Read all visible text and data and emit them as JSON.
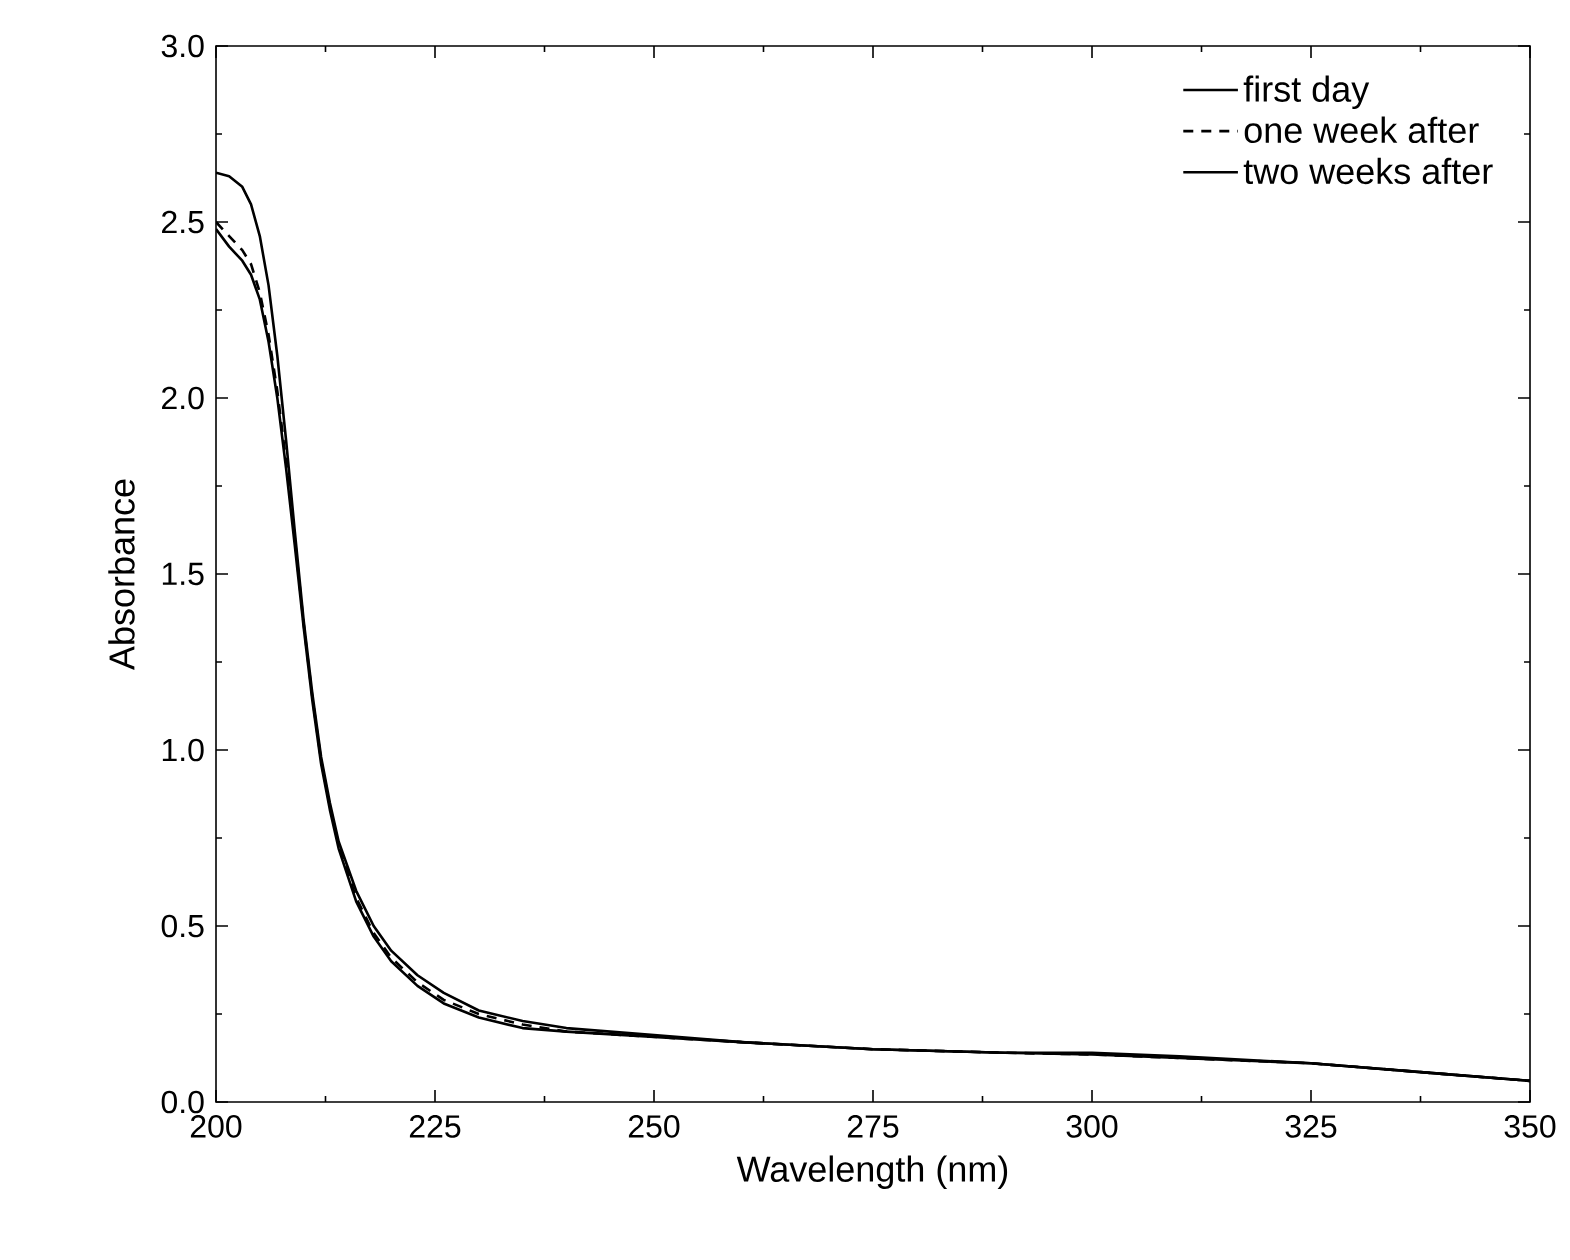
{
  "chart_data": {
    "type": "line",
    "xlabel": "Wavelength (nm)",
    "ylabel": "Absorbance",
    "xlim": [
      200,
      350
    ],
    "ylim": [
      0,
      3.0
    ],
    "xticks": [
      200,
      225,
      250,
      275,
      300,
      325,
      350
    ],
    "yticks": [
      {
        "value": 0,
        "label": "0.0"
      },
      {
        "value": 0.5,
        "label": "0.5"
      },
      {
        "value": 1,
        "label": "1.0"
      },
      {
        "value": 1.5,
        "label": "1.5"
      },
      {
        "value": 2,
        "label": "2.0"
      },
      {
        "value": 2.5,
        "label": "2.5"
      },
      {
        "value": 3,
        "label": "3.0"
      }
    ],
    "legend": "top right",
    "grid": false,
    "series": [
      {
        "name": "first day",
        "color": "#000000",
        "line_style": "solid",
        "x": [
          200,
          201.5,
          203,
          204,
          205,
          206,
          207,
          208,
          209,
          210,
          211,
          212,
          213,
          214,
          216,
          218,
          220,
          223,
          226,
          230,
          235,
          240,
          250,
          260,
          275,
          290,
          300,
          310,
          325,
          340,
          350
        ],
        "values": [
          2.64,
          2.63,
          2.6,
          2.55,
          2.46,
          2.32,
          2.12,
          1.88,
          1.62,
          1.37,
          1.16,
          0.98,
          0.85,
          0.74,
          0.6,
          0.5,
          0.43,
          0.36,
          0.31,
          0.26,
          0.23,
          0.21,
          0.19,
          0.17,
          0.15,
          0.14,
          0.135,
          0.125,
          0.11,
          0.08,
          0.06
        ]
      },
      {
        "name": "one week after",
        "color": "#000000",
        "line_style": "dashed",
        "x": [
          200,
          201.5,
          203,
          204,
          205,
          206,
          207,
          208,
          209,
          210,
          211,
          212,
          213,
          214,
          216,
          218,
          220,
          223,
          226,
          230,
          235,
          240,
          250,
          260,
          275,
          290,
          300,
          310,
          325,
          340,
          350
        ],
        "values": [
          2.5,
          2.46,
          2.42,
          2.38,
          2.3,
          2.18,
          2.02,
          1.82,
          1.6,
          1.36,
          1.15,
          0.97,
          0.84,
          0.73,
          0.58,
          0.48,
          0.41,
          0.34,
          0.29,
          0.25,
          0.22,
          0.2,
          0.185,
          0.17,
          0.15,
          0.14,
          0.135,
          0.125,
          0.11,
          0.08,
          0.06
        ]
      },
      {
        "name": "two weeks after",
        "color": "#000000",
        "line_style": "solid",
        "x": [
          200,
          201.5,
          203,
          204,
          205,
          206,
          207,
          208,
          209,
          210,
          211,
          212,
          213,
          214,
          216,
          218,
          220,
          223,
          226,
          230,
          235,
          240,
          250,
          260,
          275,
          290,
          300,
          310,
          325,
          340,
          350
        ],
        "values": [
          2.48,
          2.43,
          2.39,
          2.35,
          2.28,
          2.16,
          2.0,
          1.8,
          1.58,
          1.35,
          1.14,
          0.96,
          0.83,
          0.72,
          0.57,
          0.47,
          0.4,
          0.33,
          0.28,
          0.24,
          0.21,
          0.2,
          0.185,
          0.17,
          0.15,
          0.14,
          0.14,
          0.13,
          0.11,
          0.08,
          0.06
        ]
      }
    ]
  }
}
